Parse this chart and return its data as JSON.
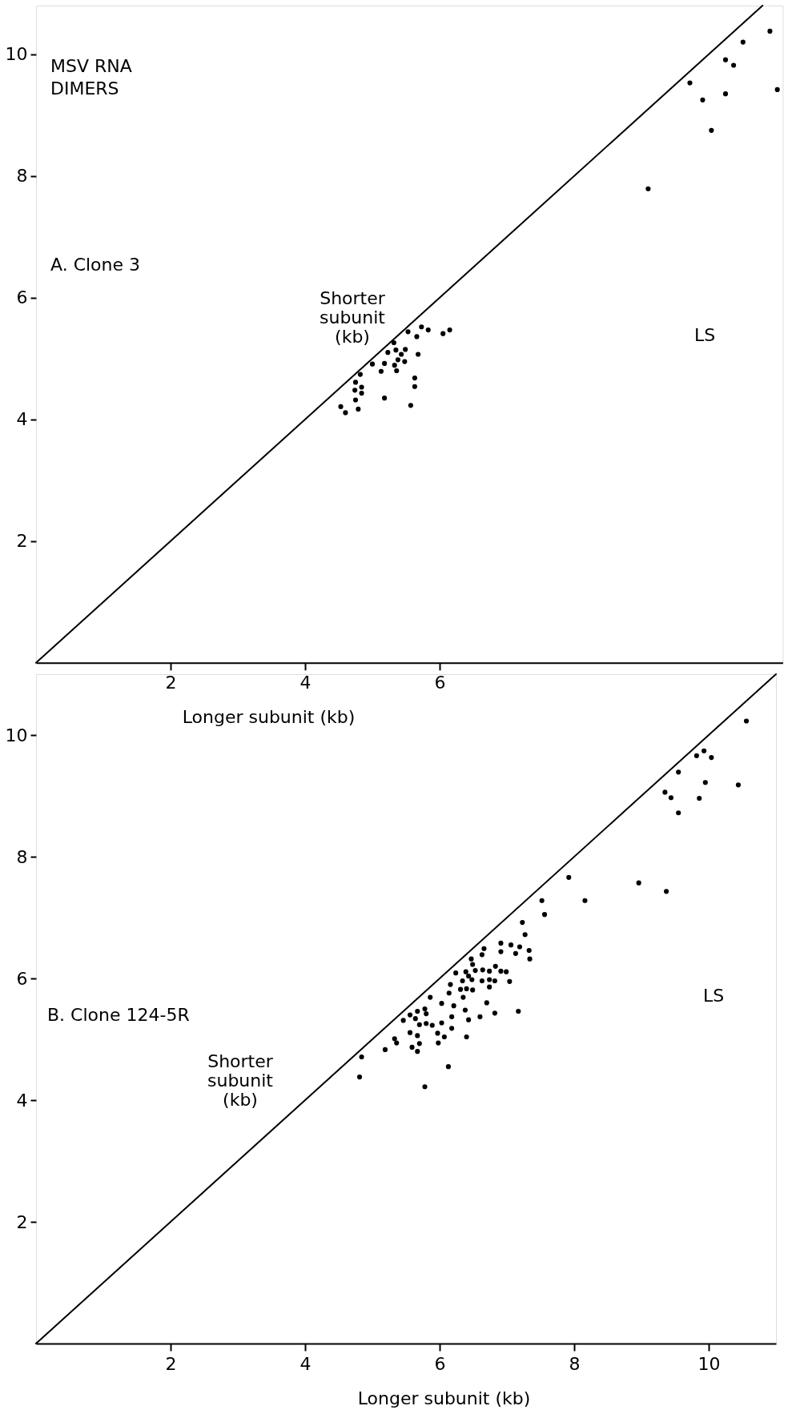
{
  "chart_data": [
    {
      "type": "scatter",
      "title": "MSV RNA DIMERS",
      "xlabel": "Longer subunit (kb)",
      "ylabel": "Shorter subunit (kb)",
      "annotations": [
        "A. Clone 3",
        "LS"
      ],
      "xlim": [
        0,
        11.1
      ],
      "ylim": [
        0,
        10.8
      ],
      "xticks": [
        2,
        4,
        6
      ],
      "yticks": [
        2,
        4,
        6,
        8,
        10
      ],
      "series": [
        {
          "type": "line",
          "color": "#000000",
          "x": [
            0,
            10.8
          ],
          "values": [
            0,
            10.8
          ]
        },
        {
          "color": "#000000",
          "marker": "circle",
          "x": [
            5.73,
            5.83,
            5.53,
            5.66,
            6.05,
            6.15,
            5.32,
            5.23,
            5.35,
            5.49,
            5.43,
            5.68,
            5.38,
            5.48,
            5.0,
            5.18,
            5.33,
            5.13,
            5.36,
            4.82,
            4.75,
            4.84,
            4.74,
            4.84,
            5.63,
            5.63,
            4.75,
            5.18,
            4.53,
            4.6,
            4.79,
            5.57,
            10.91,
            10.51,
            10.25,
            10.37,
            9.72,
            11.02,
            10.25,
            9.91,
            10.04,
            9.1
          ],
          "values": [
            5.52,
            5.47,
            5.44,
            5.36,
            5.41,
            5.47,
            5.26,
            5.1,
            5.14,
            5.15,
            5.07,
            5.07,
            4.98,
            4.95,
            4.91,
            4.92,
            4.89,
            4.79,
            4.8,
            4.74,
            4.61,
            4.53,
            4.48,
            4.43,
            4.68,
            4.54,
            4.32,
            4.35,
            4.21,
            4.11,
            4.17,
            4.23,
            10.38,
            10.2,
            9.91,
            9.82,
            9.53,
            9.42,
            9.35,
            9.25,
            8.75,
            7.79
          ]
        }
      ]
    },
    {
      "type": "scatter",
      "xlabel": "Longer subunit (kb)",
      "ylabel": "Shorter subunit (kb)",
      "annotations": [
        "B. Clone 124-5R",
        "LS"
      ],
      "xlim": [
        0,
        11
      ],
      "ylim": [
        0,
        11
      ],
      "xticks": [
        2,
        4,
        6,
        8,
        10
      ],
      "yticks": [
        2,
        4,
        6,
        8,
        10
      ],
      "series": [
        {
          "type": "line",
          "color": "#000000",
          "x": [
            0,
            11
          ],
          "values": [
            0,
            11
          ]
        },
        {
          "color": "#000000",
          "marker": "circle",
          "x": [
            9.55,
            7.92,
            8.96,
            9.37,
            8.16,
            7.52,
            7.56,
            7.23,
            7.27,
            6.91,
            7.06,
            7.19,
            7.33,
            6.91,
            7.13,
            7.34,
            6.66,
            6.63,
            6.47,
            6.49,
            6.83,
            6.24,
            6.39,
            6.53,
            6.64,
            6.74,
            6.91,
            6.99,
            6.43,
            6.34,
            6.48,
            6.63,
            6.74,
            6.82,
            7.04,
            6.16,
            6.31,
            6.4,
            6.49,
            6.74,
            6.14,
            5.86,
            6.35,
            6.03,
            6.21,
            6.7,
            5.78,
            5.67,
            6.38,
            7.17,
            6.82,
            5.56,
            5.46,
            5.64,
            5.8,
            6.18,
            6.6,
            6.43,
            5.7,
            5.8,
            5.89,
            6.03,
            6.18,
            5.56,
            5.97,
            5.67,
            6.07,
            6.4,
            5.33,
            5.36,
            5.19,
            5.59,
            5.7,
            5.98,
            5.67,
            4.84,
            6.13,
            4.81,
            5.78,
            10.56,
            9.93,
            9.82,
            10.04,
            9.55,
            9.95,
            10.44,
            9.35,
            9.44,
            9.86
          ],
          "values": [
            8.72,
            7.66,
            7.57,
            7.43,
            7.28,
            7.28,
            7.05,
            6.92,
            6.72,
            6.58,
            6.55,
            6.52,
            6.46,
            6.44,
            6.41,
            6.32,
            6.49,
            6.39,
            6.32,
            6.23,
            6.2,
            6.09,
            6.11,
            6.13,
            6.14,
            6.12,
            6.12,
            6.11,
            6.04,
            5.96,
            5.98,
            5.96,
            5.98,
            5.96,
            5.95,
            5.9,
            5.82,
            5.83,
            5.81,
            5.86,
            5.76,
            5.69,
            5.69,
            5.59,
            5.55,
            5.6,
            5.5,
            5.46,
            5.48,
            5.46,
            5.43,
            5.4,
            5.31,
            5.34,
            5.42,
            5.37,
            5.37,
            5.32,
            5.24,
            5.26,
            5.23,
            5.27,
            5.18,
            5.11,
            5.1,
            5.06,
            5.04,
            5.04,
            5.01,
            4.94,
            4.83,
            4.87,
            4.93,
            4.94,
            4.8,
            4.71,
            4.55,
            4.38,
            4.22,
            10.23,
            9.74,
            9.66,
            9.63,
            9.39,
            9.22,
            9.18,
            9.06,
            8.97,
            8.96
          ]
        }
      ]
    }
  ]
}
